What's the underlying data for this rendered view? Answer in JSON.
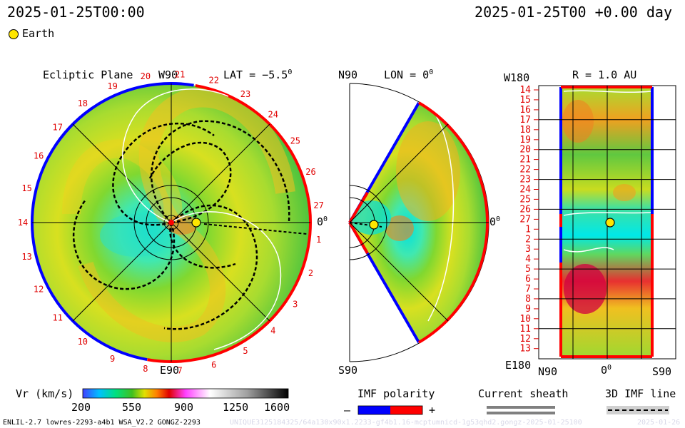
{
  "header": {
    "left_timestamp": "2025-01-25T00:00",
    "right_timestamp": "2025-01-25T00 +0.00 day",
    "legend_earth": "Earth"
  },
  "ecliptic": {
    "title": "Ecliptic Plane",
    "top_label": "W90",
    "lat_label": "LAT = −5.5",
    "lat_degree": "0",
    "bottom_label": "E90",
    "right_label": "0",
    "right_degree": "0",
    "sector_numbers": [
      "14",
      "13",
      "12",
      "11",
      "10",
      "9",
      "8",
      "7",
      "6",
      "5",
      "4",
      "3",
      "2",
      "1",
      "27",
      "26",
      "25",
      "24",
      "23",
      "22",
      "21",
      "20",
      "19",
      "18",
      "17",
      "16",
      "15"
    ]
  },
  "meridional": {
    "top_left": "N90",
    "lon_label": "LON = 0",
    "lon_degree": "0",
    "bottom_left": "S90",
    "right_label": "0",
    "right_degree": "0"
  },
  "synoptic": {
    "corner_top_left": "W180",
    "title": "R = 1.0 AU",
    "corner_bottom_left": "E180",
    "x_labels": [
      "N90",
      "0",
      "S90"
    ],
    "x_degree": "0",
    "y_labels": [
      "14",
      "15",
      "16",
      "17",
      "18",
      "19",
      "20",
      "21",
      "22",
      "23",
      "24",
      "25",
      "26",
      "27",
      "1",
      "2",
      "3",
      "4",
      "5",
      "6",
      "7",
      "8",
      "9",
      "10",
      "11",
      "12",
      "13"
    ]
  },
  "colorbar": {
    "label": "Vr (km/s)",
    "ticks": [
      "200",
      "550",
      "900",
      "1250",
      "1600"
    ],
    "range": [
      200,
      1600
    ]
  },
  "imf_polarity": {
    "title": "IMF polarity",
    "minus": "–",
    "plus": "+",
    "neg_color": "#0000ff",
    "pos_color": "#ff0000"
  },
  "current_sheath": {
    "title": "Current sheath"
  },
  "imf_line": {
    "title": "3D IMF line"
  },
  "footer": {
    "model_info": "ENLIL-2.7 lowres-2293-a4b1 WSA_V2.2 GONGZ-2293",
    "watermark": "UNIQUE3125184325/64a130x90x1.2233-gf4b1.16-mcptumnicd-1g53qhd2.gongz-2025-01-25100",
    "watermark_date": "2025-01-26"
  },
  "chart_data": [
    {
      "type": "heatmap",
      "title": "Ecliptic Plane",
      "quantity": "Vr (km/s)",
      "range": [
        200,
        1600
      ]
    },
    {
      "type": "heatmap",
      "title": "LON = 0",
      "quantity": "Vr (km/s)",
      "range": [
        200,
        1600
      ]
    },
    {
      "type": "heatmap",
      "title": "R = 1.0 AU",
      "quantity": "Vr (km/s)",
      "range": [
        200,
        1600
      ]
    }
  ]
}
